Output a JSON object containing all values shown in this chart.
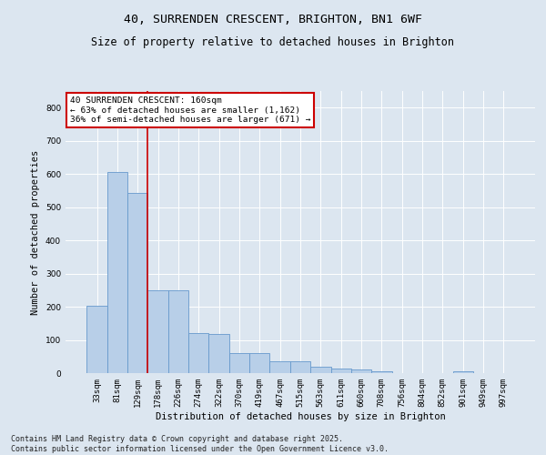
{
  "title1": "40, SURRENDEN CRESCENT, BRIGHTON, BN1 6WF",
  "title2": "Size of property relative to detached houses in Brighton",
  "xlabel": "Distribution of detached houses by size in Brighton",
  "ylabel": "Number of detached properties",
  "bar_labels": [
    "33sqm",
    "81sqm",
    "129sqm",
    "178sqm",
    "226sqm",
    "274sqm",
    "322sqm",
    "370sqm",
    "419sqm",
    "467sqm",
    "515sqm",
    "563sqm",
    "611sqm",
    "660sqm",
    "708sqm",
    "756sqm",
    "804sqm",
    "852sqm",
    "901sqm",
    "949sqm",
    "997sqm"
  ],
  "bar_values": [
    203,
    605,
    543,
    250,
    249,
    120,
    119,
    60,
    60,
    35,
    35,
    20,
    15,
    12,
    5,
    0,
    0,
    0,
    5,
    0,
    0
  ],
  "bar_color": "#b8cfe8",
  "bar_edgecolor": "#6699cc",
  "bar_linewidth": 0.6,
  "bg_color": "#dce6f0",
  "grid_color": "#ffffff",
  "vline_color": "#cc0000",
  "ylim": [
    0,
    850
  ],
  "yticks": [
    0,
    100,
    200,
    300,
    400,
    500,
    600,
    700,
    800
  ],
  "annotation_title": "40 SURRENDEN CRESCENT: 160sqm",
  "annotation_line1": "← 63% of detached houses are smaller (1,162)",
  "annotation_line2": "36% of semi-detached houses are larger (671) →",
  "annotation_box_color": "#ffffff",
  "annotation_box_edgecolor": "#cc0000",
  "footer1": "Contains HM Land Registry data © Crown copyright and database right 2025.",
  "footer2": "Contains public sector information licensed under the Open Government Licence v3.0.",
  "title1_fontsize": 9.5,
  "title2_fontsize": 8.5,
  "axis_label_fontsize": 7.5,
  "tick_fontsize": 6.5,
  "annotation_fontsize": 6.8,
  "footer_fontsize": 6.0
}
